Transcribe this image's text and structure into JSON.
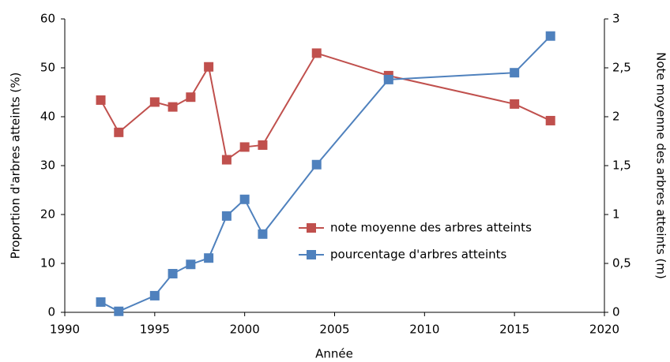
{
  "chart_data": {
    "type": "line",
    "x_label": "Année",
    "y_label": "Proportion d'arbres atteints  (%)",
    "y2_label": "Note moyenne des arbres atteints (m)",
    "x": [
      1992,
      1993,
      1995,
      1996,
      1997,
      1998,
      1999,
      2000,
      2001,
      2004,
      2008,
      2015,
      2017
    ],
    "series": [
      {
        "name": "note moyenne des arbres atteints",
        "color": "#c0504d",
        "axis": "y2",
        "values": [
          2.17,
          1.84,
          2.15,
          2.1,
          2.2,
          2.51,
          1.56,
          1.69,
          1.71,
          2.65,
          2.42,
          2.13,
          1.96
        ]
      },
      {
        "name": "pourcentage d'arbres atteints",
        "color": "#4f81bd",
        "values": [
          2.1,
          0.2,
          3.4,
          7.9,
          9.8,
          11.1,
          19.7,
          23.1,
          16.0,
          30.2,
          47.6,
          49.0,
          56.5
        ]
      }
    ],
    "xlim": [
      1990,
      2020
    ],
    "xticks": [
      1990,
      1995,
      2000,
      2005,
      2010,
      2015,
      2020
    ],
    "ylim": [
      0,
      60
    ],
    "yticks": [
      0,
      10,
      20,
      30,
      40,
      50,
      60
    ],
    "y2lim": [
      0,
      3
    ],
    "y2ticks": [
      0,
      {
        "value": 0.5,
        "label": "0,5"
      },
      1,
      {
        "value": 1.5,
        "label": "1,5"
      },
      2,
      {
        "value": 2.5,
        "label": "2,5"
      },
      3
    ],
    "grid": false
  }
}
